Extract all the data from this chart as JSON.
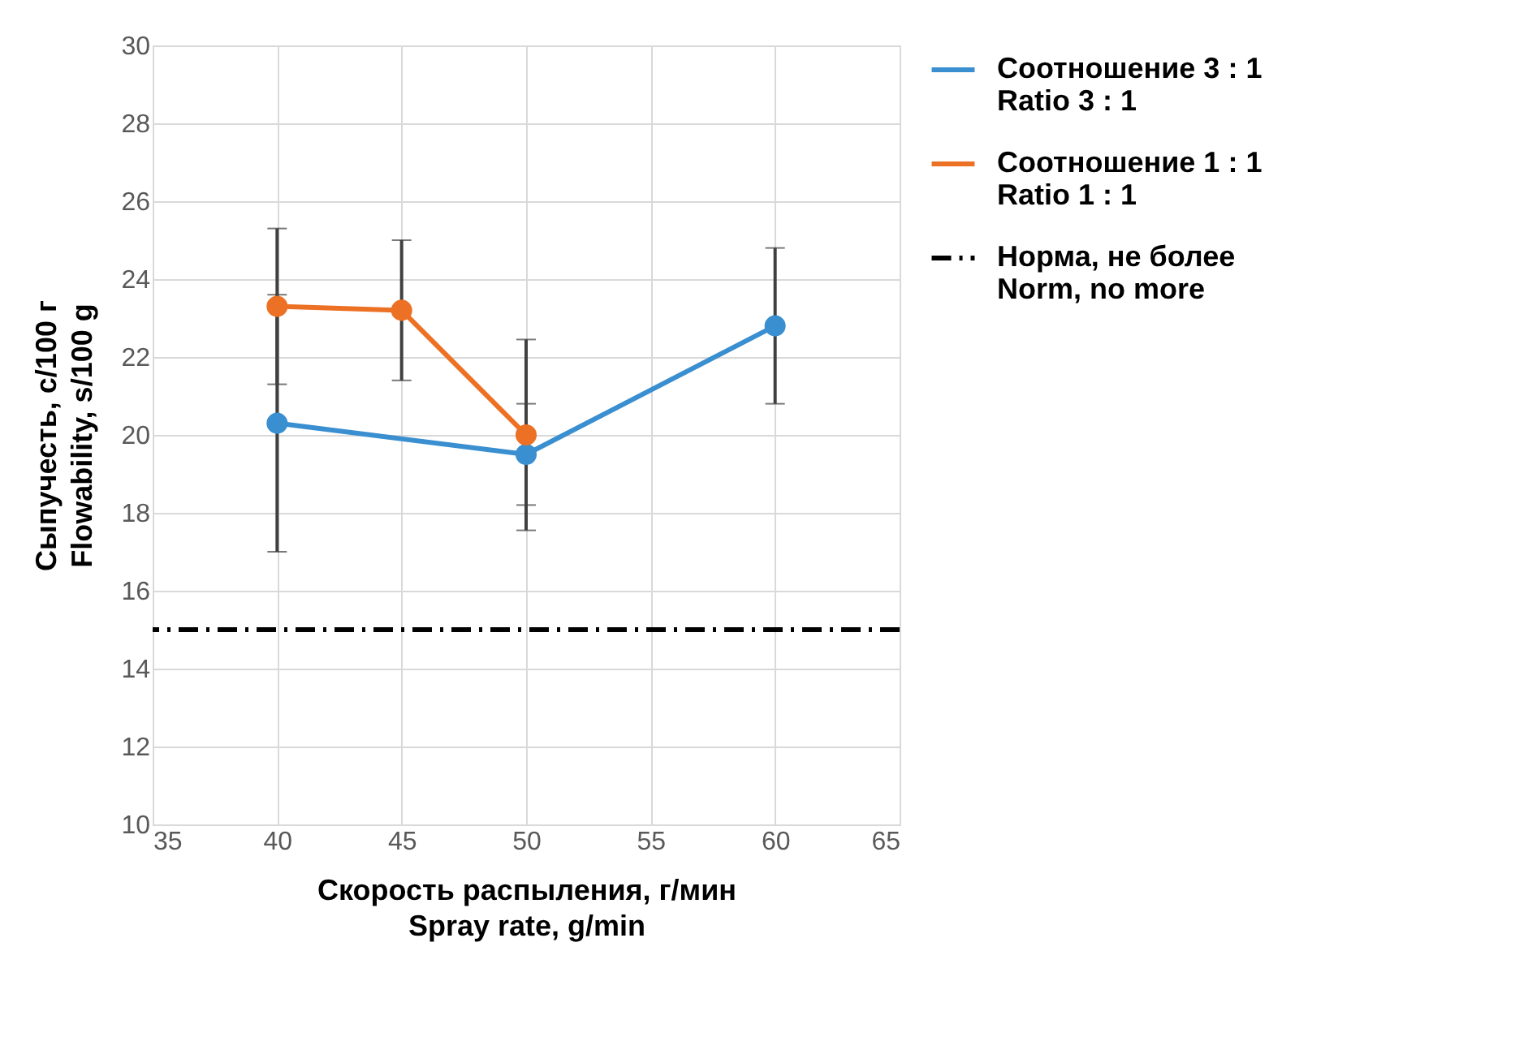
{
  "chart_data": {
    "type": "line",
    "xlabel": "Скорость распыления, г/мин\nSpray rate, g/min",
    "ylabel": "Сыпучесть, с/100 г\nFlowability, s/100 g",
    "xlim": [
      35,
      65
    ],
    "xticks": [
      35,
      40,
      45,
      50,
      55,
      60,
      65
    ],
    "ylim": [
      10,
      30
    ],
    "yticks": [
      10,
      12,
      14,
      16,
      18,
      20,
      22,
      24,
      26,
      28,
      30
    ],
    "grid": true,
    "legend": "right",
    "marker": "circle",
    "line_style": "solid",
    "series": [
      {
        "name": "Соотношение 3 : 1\nRatio 3 : 1",
        "color": "#3a8fd0",
        "x": [
          40,
          50,
          60
        ],
        "values": [
          20.3,
          19.5,
          22.8
        ],
        "errors": [
          3.3,
          1.3,
          2.0
        ]
      },
      {
        "name": "Соотношение 1 : 1\nRatio 1 : 1",
        "color": "#ed7125",
        "x": [
          40,
          45,
          50
        ],
        "values": [
          23.3,
          23.2,
          20.0
        ],
        "errors": [
          2.0,
          1.8,
          2.45
        ]
      }
    ],
    "ref_lines": [
      {
        "axis": "y",
        "value": 15,
        "label": "Норма, не более\nNorm, no more",
        "color": "#000000",
        "line_style": "dashdot"
      }
    ]
  }
}
